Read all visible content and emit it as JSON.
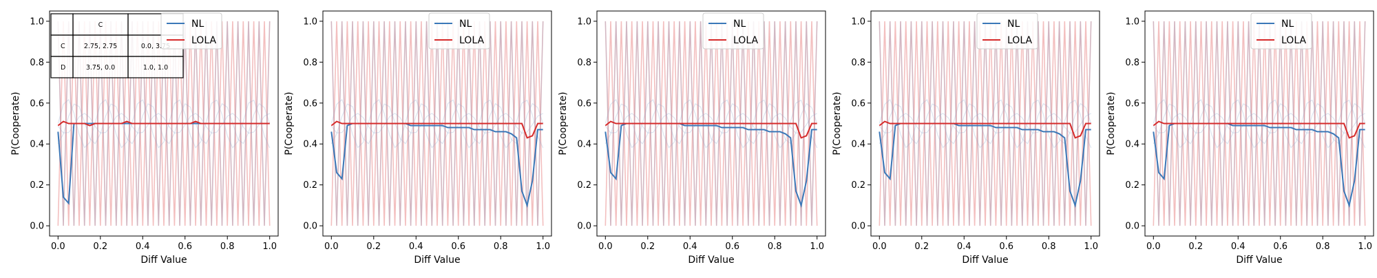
{
  "figure": {
    "panel_count": 5
  },
  "colors": {
    "nl": "#3b78b8",
    "lola": "#d62a2a",
    "nl_faint": "#8fa8cc",
    "lola_faint": "#e98a8a"
  },
  "chart_data": [
    {
      "type": "line",
      "xlabel": "Diff Value",
      "ylabel": "P(Cooperate)",
      "xlim": [
        0,
        1
      ],
      "ylim": [
        0,
        1
      ],
      "xticks": [
        "0.0",
        "0.2",
        "0.4",
        "0.6",
        "0.8",
        "1.0"
      ],
      "yticks": [
        "0.0",
        "0.2",
        "0.4",
        "0.6",
        "0.8",
        "1.0"
      ],
      "grid": false,
      "legend": {
        "placement": "top-center",
        "entries": [
          "NL",
          "LOLA"
        ]
      },
      "x": [
        0.0,
        0.025,
        0.05,
        0.075,
        0.1,
        0.125,
        0.15,
        0.175,
        0.2,
        0.225,
        0.25,
        0.275,
        0.3,
        0.325,
        0.35,
        0.375,
        0.4,
        0.425,
        0.45,
        0.475,
        0.5,
        0.525,
        0.55,
        0.575,
        0.6,
        0.625,
        0.65,
        0.675,
        0.7,
        0.725,
        0.75,
        0.775,
        0.8,
        0.825,
        0.85,
        0.875,
        0.9,
        0.925,
        0.95,
        0.975,
        1.0
      ],
      "series": [
        {
          "name": "NL",
          "values": [
            0.46,
            0.14,
            0.11,
            0.5,
            0.5,
            0.5,
            0.5,
            0.5,
            0.5,
            0.5,
            0.5,
            0.5,
            0.5,
            0.5,
            0.5,
            0.5,
            0.5,
            0.5,
            0.5,
            0.5,
            0.5,
            0.5,
            0.5,
            0.5,
            0.5,
            0.5,
            0.5,
            0.5,
            0.5,
            0.5,
            0.5,
            0.5,
            0.5,
            0.5,
            0.5,
            0.5,
            0.5,
            0.5,
            0.5,
            0.5,
            0.5
          ]
        },
        {
          "name": "LOLA",
          "values": [
            0.49,
            0.51,
            0.5,
            0.5,
            0.5,
            0.5,
            0.49,
            0.5,
            0.5,
            0.5,
            0.5,
            0.5,
            0.5,
            0.51,
            0.5,
            0.5,
            0.5,
            0.5,
            0.5,
            0.5,
            0.5,
            0.5,
            0.5,
            0.5,
            0.5,
            0.5,
            0.51,
            0.5,
            0.5,
            0.5,
            0.5,
            0.5,
            0.5,
            0.5,
            0.5,
            0.5,
            0.5,
            0.5,
            0.5,
            0.5,
            0.5
          ]
        }
      ],
      "inset_table": {
        "header": [
          "",
          "C",
          ""
        ],
        "rows": [
          [
            "C",
            "2.75, 2.75",
            "0.0, 3.75"
          ],
          [
            "D",
            "3.75, 0.0",
            "1.0, 1.0"
          ]
        ]
      }
    },
    {
      "type": "line",
      "xlabel": "Diff Value",
      "ylabel": "P(Cooperate)",
      "xlim": [
        0,
        1
      ],
      "ylim": [
        0,
        1
      ],
      "xticks": [
        "0.0",
        "0.2",
        "0.4",
        "0.6",
        "0.8",
        "1.0"
      ],
      "yticks": [
        "0.0",
        "0.2",
        "0.4",
        "0.6",
        "0.8",
        "1.0"
      ],
      "grid": false,
      "legend": {
        "placement": "top-center",
        "entries": [
          "NL",
          "LOLA"
        ]
      },
      "x": [
        0.0,
        0.025,
        0.05,
        0.075,
        0.1,
        0.125,
        0.15,
        0.175,
        0.2,
        0.225,
        0.25,
        0.275,
        0.3,
        0.325,
        0.35,
        0.375,
        0.4,
        0.425,
        0.45,
        0.475,
        0.5,
        0.525,
        0.55,
        0.575,
        0.6,
        0.625,
        0.65,
        0.675,
        0.7,
        0.725,
        0.75,
        0.775,
        0.8,
        0.825,
        0.85,
        0.875,
        0.9,
        0.925,
        0.95,
        0.975,
        1.0
      ],
      "series": [
        {
          "name": "NL",
          "values": [
            0.46,
            0.26,
            0.23,
            0.49,
            0.5,
            0.5,
            0.5,
            0.5,
            0.5,
            0.5,
            0.5,
            0.5,
            0.5,
            0.5,
            0.5,
            0.49,
            0.49,
            0.49,
            0.49,
            0.49,
            0.49,
            0.49,
            0.48,
            0.48,
            0.48,
            0.48,
            0.48,
            0.47,
            0.47,
            0.47,
            0.47,
            0.46,
            0.46,
            0.46,
            0.45,
            0.43,
            0.17,
            0.1,
            0.22,
            0.47,
            0.47
          ]
        },
        {
          "name": "LOLA",
          "values": [
            0.49,
            0.51,
            0.5,
            0.5,
            0.5,
            0.5,
            0.5,
            0.5,
            0.5,
            0.5,
            0.5,
            0.5,
            0.5,
            0.5,
            0.5,
            0.5,
            0.5,
            0.5,
            0.5,
            0.5,
            0.5,
            0.5,
            0.5,
            0.5,
            0.5,
            0.5,
            0.5,
            0.5,
            0.5,
            0.5,
            0.5,
            0.5,
            0.5,
            0.5,
            0.5,
            0.5,
            0.5,
            0.43,
            0.44,
            0.5,
            0.5
          ]
        }
      ]
    },
    {
      "type": "line",
      "xlabel": "Diff Value",
      "ylabel": "P(Cooperate)",
      "xlim": [
        0,
        1
      ],
      "ylim": [
        0,
        1
      ],
      "xticks": [
        "0.0",
        "0.2",
        "0.4",
        "0.6",
        "0.8",
        "1.0"
      ],
      "yticks": [
        "0.0",
        "0.2",
        "0.4",
        "0.6",
        "0.8",
        "1.0"
      ],
      "grid": false,
      "legend": {
        "placement": "top-center",
        "entries": [
          "NL",
          "LOLA"
        ]
      },
      "x": [
        0.0,
        0.025,
        0.05,
        0.075,
        0.1,
        0.125,
        0.15,
        0.175,
        0.2,
        0.225,
        0.25,
        0.275,
        0.3,
        0.325,
        0.35,
        0.375,
        0.4,
        0.425,
        0.45,
        0.475,
        0.5,
        0.525,
        0.55,
        0.575,
        0.6,
        0.625,
        0.65,
        0.675,
        0.7,
        0.725,
        0.75,
        0.775,
        0.8,
        0.825,
        0.85,
        0.875,
        0.9,
        0.925,
        0.95,
        0.975,
        1.0
      ],
      "series": [
        {
          "name": "NL",
          "values": [
            0.46,
            0.26,
            0.23,
            0.49,
            0.5,
            0.5,
            0.5,
            0.5,
            0.5,
            0.5,
            0.5,
            0.5,
            0.5,
            0.5,
            0.5,
            0.49,
            0.49,
            0.49,
            0.49,
            0.49,
            0.49,
            0.49,
            0.48,
            0.48,
            0.48,
            0.48,
            0.48,
            0.47,
            0.47,
            0.47,
            0.47,
            0.46,
            0.46,
            0.46,
            0.45,
            0.43,
            0.17,
            0.1,
            0.22,
            0.47,
            0.47
          ]
        },
        {
          "name": "LOLA",
          "values": [
            0.49,
            0.51,
            0.5,
            0.5,
            0.5,
            0.5,
            0.5,
            0.5,
            0.5,
            0.5,
            0.5,
            0.5,
            0.5,
            0.5,
            0.5,
            0.5,
            0.5,
            0.5,
            0.5,
            0.5,
            0.5,
            0.5,
            0.5,
            0.5,
            0.5,
            0.5,
            0.5,
            0.5,
            0.5,
            0.5,
            0.5,
            0.5,
            0.5,
            0.5,
            0.5,
            0.5,
            0.5,
            0.43,
            0.44,
            0.5,
            0.5
          ]
        }
      ]
    },
    {
      "type": "line",
      "xlabel": "Diff Value",
      "ylabel": "P(Cooperate)",
      "xlim": [
        0,
        1
      ],
      "ylim": [
        0,
        1
      ],
      "xticks": [
        "0.0",
        "0.2",
        "0.4",
        "0.6",
        "0.8",
        "1.0"
      ],
      "yticks": [
        "0.0",
        "0.2",
        "0.4",
        "0.6",
        "0.8",
        "1.0"
      ],
      "grid": false,
      "legend": {
        "placement": "top-center",
        "entries": [
          "NL",
          "LOLA"
        ]
      },
      "x": [
        0.0,
        0.025,
        0.05,
        0.075,
        0.1,
        0.125,
        0.15,
        0.175,
        0.2,
        0.225,
        0.25,
        0.275,
        0.3,
        0.325,
        0.35,
        0.375,
        0.4,
        0.425,
        0.45,
        0.475,
        0.5,
        0.525,
        0.55,
        0.575,
        0.6,
        0.625,
        0.65,
        0.675,
        0.7,
        0.725,
        0.75,
        0.775,
        0.8,
        0.825,
        0.85,
        0.875,
        0.9,
        0.925,
        0.95,
        0.975,
        1.0
      ],
      "series": [
        {
          "name": "NL",
          "values": [
            0.46,
            0.26,
            0.23,
            0.49,
            0.5,
            0.5,
            0.5,
            0.5,
            0.5,
            0.5,
            0.5,
            0.5,
            0.5,
            0.5,
            0.5,
            0.49,
            0.49,
            0.49,
            0.49,
            0.49,
            0.49,
            0.49,
            0.48,
            0.48,
            0.48,
            0.48,
            0.48,
            0.47,
            0.47,
            0.47,
            0.47,
            0.46,
            0.46,
            0.46,
            0.45,
            0.43,
            0.17,
            0.1,
            0.22,
            0.47,
            0.47
          ]
        },
        {
          "name": "LOLA",
          "values": [
            0.49,
            0.51,
            0.5,
            0.5,
            0.5,
            0.5,
            0.5,
            0.5,
            0.5,
            0.5,
            0.5,
            0.5,
            0.5,
            0.5,
            0.5,
            0.5,
            0.5,
            0.5,
            0.5,
            0.5,
            0.5,
            0.5,
            0.5,
            0.5,
            0.5,
            0.5,
            0.5,
            0.5,
            0.5,
            0.5,
            0.5,
            0.5,
            0.5,
            0.5,
            0.5,
            0.5,
            0.5,
            0.43,
            0.44,
            0.5,
            0.5
          ]
        }
      ]
    },
    {
      "type": "line",
      "xlabel": "Diff Value",
      "ylabel": "P(Cooperate)",
      "xlim": [
        0,
        1
      ],
      "ylim": [
        0,
        1
      ],
      "xticks": [
        "0.0",
        "0.2",
        "0.4",
        "0.6",
        "0.8",
        "1.0"
      ],
      "yticks": [
        "0.0",
        "0.2",
        "0.4",
        "0.6",
        "0.8",
        "1.0"
      ],
      "grid": false,
      "legend": {
        "placement": "top-center",
        "entries": [
          "NL",
          "LOLA"
        ]
      },
      "x": [
        0.0,
        0.025,
        0.05,
        0.075,
        0.1,
        0.125,
        0.15,
        0.175,
        0.2,
        0.225,
        0.25,
        0.275,
        0.3,
        0.325,
        0.35,
        0.375,
        0.4,
        0.425,
        0.45,
        0.475,
        0.5,
        0.525,
        0.55,
        0.575,
        0.6,
        0.625,
        0.65,
        0.675,
        0.7,
        0.725,
        0.75,
        0.775,
        0.8,
        0.825,
        0.85,
        0.875,
        0.9,
        0.925,
        0.95,
        0.975,
        1.0
      ],
      "series": [
        {
          "name": "NL",
          "values": [
            0.46,
            0.26,
            0.23,
            0.49,
            0.5,
            0.5,
            0.5,
            0.5,
            0.5,
            0.5,
            0.5,
            0.5,
            0.5,
            0.5,
            0.5,
            0.49,
            0.49,
            0.49,
            0.49,
            0.49,
            0.49,
            0.49,
            0.48,
            0.48,
            0.48,
            0.48,
            0.48,
            0.47,
            0.47,
            0.47,
            0.47,
            0.46,
            0.46,
            0.46,
            0.45,
            0.43,
            0.17,
            0.1,
            0.22,
            0.47,
            0.47
          ]
        },
        {
          "name": "LOLA",
          "values": [
            0.49,
            0.51,
            0.5,
            0.5,
            0.5,
            0.5,
            0.5,
            0.5,
            0.5,
            0.5,
            0.5,
            0.5,
            0.5,
            0.5,
            0.5,
            0.5,
            0.5,
            0.5,
            0.5,
            0.5,
            0.5,
            0.5,
            0.5,
            0.5,
            0.5,
            0.5,
            0.5,
            0.5,
            0.5,
            0.5,
            0.5,
            0.5,
            0.5,
            0.5,
            0.5,
            0.5,
            0.5,
            0.43,
            0.44,
            0.5,
            0.5
          ]
        }
      ]
    }
  ]
}
